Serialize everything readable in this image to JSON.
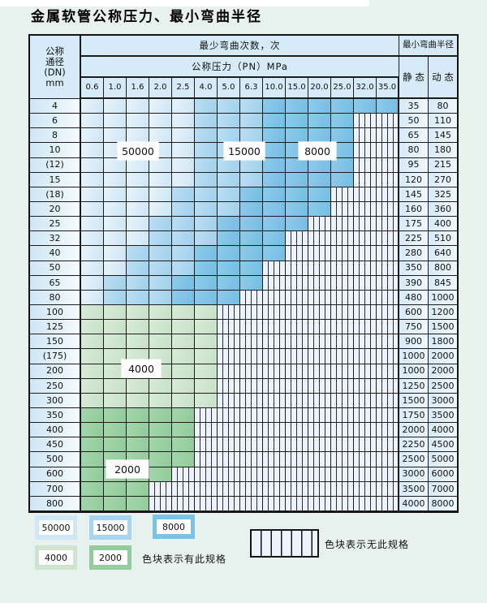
{
  "title": "金属软管公称压力、最小弯曲半径",
  "table": {
    "header": {
      "dn_lines": [
        "公称",
        "通径",
        "(DN)",
        "mm"
      ],
      "bend_cycles_label": "最少弯曲次数，次",
      "pressure_label": "公称压力（PN）MPa",
      "radius_label": "最小弯曲半径",
      "static_label": "静 态",
      "dynamic_label": "动 态",
      "pressures": [
        "0.6",
        "1.0",
        "1.6",
        "2.0",
        "2.5",
        "4.0",
        "5.0",
        "6.3",
        "10.0",
        "15.0",
        "20.0",
        "25.0",
        "32.0",
        "35.0"
      ]
    },
    "cell_color_meaning": {
      "b1": "50000 次",
      "b2": "15000 次",
      "b3": "8000 次",
      "g1": "4000 次",
      "g2": "2000 次",
      "x": "无此规格"
    },
    "rows": [
      {
        "dn": "4",
        "cells": [
          "b1",
          "b1",
          "b1",
          "b1",
          "b1",
          "b2",
          "b2",
          "b2",
          "b3",
          "b3",
          "b3",
          "b3",
          "b3",
          "b3"
        ],
        "static": "35",
        "dynamic": "80"
      },
      {
        "dn": "6",
        "cells": [
          "b1",
          "b1",
          "b1",
          "b1",
          "b1",
          "b2",
          "b2",
          "b2",
          "b3",
          "b3",
          "b3",
          "b3",
          "x",
          "x"
        ],
        "static": "50",
        "dynamic": "110"
      },
      {
        "dn": "8",
        "cells": [
          "b1",
          "b1",
          "b1",
          "b1",
          "b1",
          "b2",
          "b2",
          "b2",
          "b3",
          "b3",
          "b3",
          "b3",
          "x",
          "x"
        ],
        "static": "65",
        "dynamic": "145"
      },
      {
        "dn": "10",
        "cells": [
          "b1",
          "b1",
          "b1",
          "b1",
          "b1",
          "b2",
          "b2",
          "b2",
          "b3",
          "b3",
          "b3",
          "b3",
          "x",
          "x"
        ],
        "static": "80",
        "dynamic": "180"
      },
      {
        "dn": "(12)",
        "cells": [
          "b1",
          "b1",
          "b1",
          "b1",
          "b1",
          "b2",
          "b2",
          "b2",
          "b3",
          "b3",
          "b3",
          "b3",
          "x",
          "x"
        ],
        "static": "95",
        "dynamic": "215"
      },
      {
        "dn": "15",
        "cells": [
          "b1",
          "b1",
          "b1",
          "b1",
          "b1",
          "b2",
          "b2",
          "b2",
          "b3",
          "b3",
          "b3",
          "b3",
          "x",
          "x"
        ],
        "static": "120",
        "dynamic": "270"
      },
      {
        "dn": "(18)",
        "cells": [
          "b1",
          "b1",
          "b1",
          "b1",
          "b2",
          "b2",
          "b2",
          "b3",
          "b3",
          "b3",
          "b3",
          "x",
          "x",
          "x"
        ],
        "static": "145",
        "dynamic": "325"
      },
      {
        "dn": "20",
        "cells": [
          "b1",
          "b1",
          "b1",
          "b1",
          "b2",
          "b2",
          "b2",
          "b3",
          "b3",
          "b3",
          "b3",
          "x",
          "x",
          "x"
        ],
        "static": "160",
        "dynamic": "360"
      },
      {
        "dn": "25",
        "cells": [
          "b1",
          "b1",
          "b1",
          "b2",
          "b2",
          "b2",
          "b3",
          "b3",
          "b3",
          "b3",
          "x",
          "x",
          "x",
          "x"
        ],
        "static": "175",
        "dynamic": "400"
      },
      {
        "dn": "32",
        "cells": [
          "b1",
          "b1",
          "b1",
          "b2",
          "b2",
          "b2",
          "b3",
          "b3",
          "b3",
          "x",
          "x",
          "x",
          "x",
          "x"
        ],
        "static": "225",
        "dynamic": "510"
      },
      {
        "dn": "40",
        "cells": [
          "b1",
          "b1",
          "b2",
          "b2",
          "b2",
          "b3",
          "b3",
          "b3",
          "b3",
          "x",
          "x",
          "x",
          "x",
          "x"
        ],
        "static": "280",
        "dynamic": "640"
      },
      {
        "dn": "50",
        "cells": [
          "b1",
          "b1",
          "b2",
          "b2",
          "b2",
          "b3",
          "b3",
          "b3",
          "x",
          "x",
          "x",
          "x",
          "x",
          "x"
        ],
        "static": "350",
        "dynamic": "800"
      },
      {
        "dn": "65",
        "cells": [
          "b1",
          "b2",
          "b2",
          "b2",
          "b3",
          "b3",
          "b3",
          "b3",
          "x",
          "x",
          "x",
          "x",
          "x",
          "x"
        ],
        "static": "390",
        "dynamic": "845"
      },
      {
        "dn": "80",
        "cells": [
          "b1",
          "b2",
          "b2",
          "b2",
          "b3",
          "b3",
          "b3",
          "x",
          "x",
          "x",
          "x",
          "x",
          "x",
          "x"
        ],
        "static": "480",
        "dynamic": "1000"
      },
      {
        "dn": "100",
        "cells": [
          "g1",
          "g1",
          "g1",
          "g1",
          "g1",
          "g1",
          "x",
          "x",
          "x",
          "x",
          "x",
          "x",
          "x",
          "x"
        ],
        "static": "600",
        "dynamic": "1200"
      },
      {
        "dn": "125",
        "cells": [
          "g1",
          "g1",
          "g1",
          "g1",
          "g1",
          "g1",
          "x",
          "x",
          "x",
          "x",
          "x",
          "x",
          "x",
          "x"
        ],
        "static": "750",
        "dynamic": "1500"
      },
      {
        "dn": "150",
        "cells": [
          "g1",
          "g1",
          "g1",
          "g1",
          "g1",
          "g1",
          "x",
          "x",
          "x",
          "x",
          "x",
          "x",
          "x",
          "x"
        ],
        "static": "900",
        "dynamic": "1800"
      },
      {
        "dn": "(175)",
        "cells": [
          "g1",
          "g1",
          "g1",
          "g1",
          "g1",
          "g1",
          "x",
          "x",
          "x",
          "x",
          "x",
          "x",
          "x",
          "x"
        ],
        "static": "1000",
        "dynamic": "2000"
      },
      {
        "dn": "200",
        "cells": [
          "g1",
          "g1",
          "g1",
          "g1",
          "g1",
          "g1",
          "x",
          "x",
          "x",
          "x",
          "x",
          "x",
          "x",
          "x"
        ],
        "static": "1000",
        "dynamic": "2000"
      },
      {
        "dn": "250",
        "cells": [
          "g1",
          "g1",
          "g1",
          "g1",
          "g1",
          "g1",
          "x",
          "x",
          "x",
          "x",
          "x",
          "x",
          "x",
          "x"
        ],
        "static": "1250",
        "dynamic": "2500"
      },
      {
        "dn": "300",
        "cells": [
          "g1",
          "g1",
          "g1",
          "g1",
          "g1",
          "g1",
          "x",
          "x",
          "x",
          "x",
          "x",
          "x",
          "x",
          "x"
        ],
        "static": "1500",
        "dynamic": "3000"
      },
      {
        "dn": "350",
        "cells": [
          "g2",
          "g2",
          "g2",
          "g2",
          "g2",
          "x",
          "x",
          "x",
          "x",
          "x",
          "x",
          "x",
          "x",
          "x"
        ],
        "static": "1750",
        "dynamic": "3500"
      },
      {
        "dn": "400",
        "cells": [
          "g2",
          "g2",
          "g2",
          "g2",
          "g2",
          "x",
          "x",
          "x",
          "x",
          "x",
          "x",
          "x",
          "x",
          "x"
        ],
        "static": "2000",
        "dynamic": "4000"
      },
      {
        "dn": "450",
        "cells": [
          "g2",
          "g2",
          "g2",
          "g2",
          "g2",
          "x",
          "x",
          "x",
          "x",
          "x",
          "x",
          "x",
          "x",
          "x"
        ],
        "static": "2250",
        "dynamic": "4500"
      },
      {
        "dn": "500",
        "cells": [
          "g2",
          "g2",
          "g2",
          "g2",
          "g2",
          "x",
          "x",
          "x",
          "x",
          "x",
          "x",
          "x",
          "x",
          "x"
        ],
        "static": "2500",
        "dynamic": "5000"
      },
      {
        "dn": "600",
        "cells": [
          "g2",
          "g2",
          "g2",
          "g2",
          "x",
          "x",
          "x",
          "x",
          "x",
          "x",
          "x",
          "x",
          "x",
          "x"
        ],
        "static": "3000",
        "dynamic": "6000"
      },
      {
        "dn": "700",
        "cells": [
          "g2",
          "g2",
          "g2",
          "x",
          "x",
          "x",
          "x",
          "x",
          "x",
          "x",
          "x",
          "x",
          "x",
          "x"
        ],
        "static": "3500",
        "dynamic": "7000"
      },
      {
        "dn": "800",
        "cells": [
          "g2",
          "g2",
          "g2",
          "x",
          "x",
          "x",
          "x",
          "x",
          "x",
          "x",
          "x",
          "x",
          "x",
          "x"
        ],
        "static": "4000",
        "dynamic": "8000"
      }
    ]
  },
  "overlays": {
    "l50000": "50000",
    "l15000": "15000",
    "l8000": "8000",
    "l4000": "4000",
    "l2000": "2000"
  },
  "legend": {
    "sw50000": "50000",
    "sw15000": "15000",
    "sw8000": "8000",
    "sw4000": "4000",
    "sw2000": "2000",
    "has_spec_text": "色块表示有此规格",
    "no_spec_text": "色块表示无此规格"
  },
  "colors": {
    "page_bg": "#e7f2ee",
    "cycles_50000": "#cfe6f7",
    "cycles_15000": "#a9d4ef",
    "cycles_8000": "#7cc2e7",
    "cycles_4000": "#cfe4cf",
    "cycles_2000": "#93cd9c",
    "no_spec_bg": "#ecf3fa",
    "header_bg": "#d6eaf7",
    "border": "#141414"
  }
}
